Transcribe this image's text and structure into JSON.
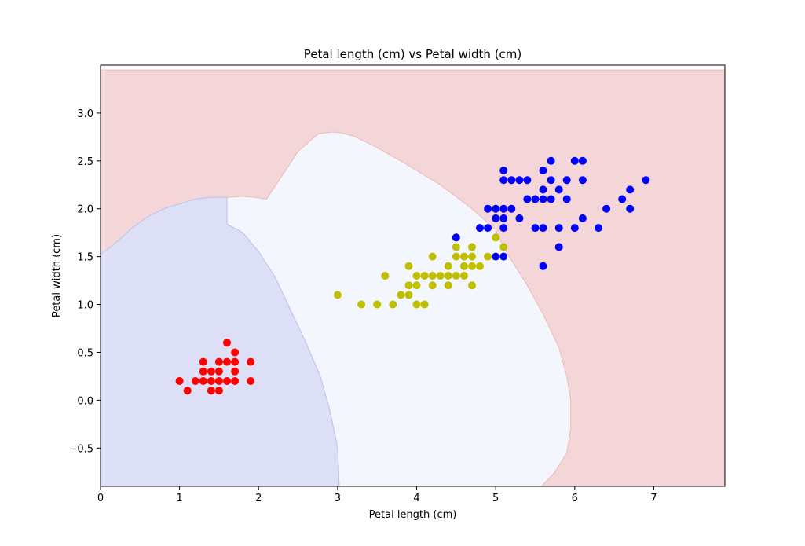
{
  "chart_data": {
    "type": "scatter",
    "title": "Petal length (cm) vs Petal width (cm)",
    "xlabel": "Petal length (cm)",
    "ylabel": "Petal width (cm)",
    "xlim": [
      0,
      7.9
    ],
    "ylim": [
      -0.9,
      3.5
    ],
    "xticks": [
      0,
      1,
      2,
      3,
      4,
      5,
      6,
      7
    ],
    "xtick_labels": [
      "0",
      "1",
      "2",
      "3",
      "4",
      "5",
      "6",
      "7"
    ],
    "yticks": [
      -0.5,
      0.0,
      0.5,
      1.0,
      1.5,
      2.0,
      2.5,
      3.0
    ],
    "ytick_labels": [
      "−0.5",
      "0.0",
      "0.5",
      "1.0",
      "1.5",
      "2.0",
      "2.5",
      "3.0"
    ],
    "grid": false,
    "decision_regions": [
      {
        "color": "#f5d6d8",
        "edge": "#f0b8b4",
        "polygon": [
          [
            0,
            -0.9
          ],
          [
            7.9,
            -0.9
          ],
          [
            7.9,
            3.45
          ],
          [
            0,
            3.45
          ]
        ]
      },
      {
        "color": "#f3f6fc",
        "edge": "#f0b8b4",
        "polygon": [
          [
            1.6,
            2.12
          ],
          [
            1.8,
            2.13
          ],
          [
            1.95,
            2.12
          ],
          [
            2.1,
            2.1
          ],
          [
            2.3,
            2.35
          ],
          [
            2.5,
            2.6
          ],
          [
            2.75,
            2.78
          ],
          [
            2.9,
            2.8
          ],
          [
            3.0,
            2.8
          ],
          [
            3.2,
            2.76
          ],
          [
            3.5,
            2.64
          ],
          [
            3.9,
            2.45
          ],
          [
            4.3,
            2.25
          ],
          [
            4.7,
            2.0
          ],
          [
            5.0,
            1.78
          ],
          [
            5.1,
            1.6
          ],
          [
            5.2,
            1.46
          ],
          [
            5.4,
            1.2
          ],
          [
            5.6,
            0.9
          ],
          [
            5.8,
            0.55
          ],
          [
            5.9,
            0.25
          ],
          [
            5.95,
            0.0
          ],
          [
            5.95,
            -0.3
          ],
          [
            5.9,
            -0.55
          ],
          [
            5.75,
            -0.75
          ],
          [
            5.58,
            -0.9
          ],
          [
            3.02,
            -0.9
          ],
          [
            3.0,
            -0.5
          ],
          [
            2.9,
            -0.1
          ],
          [
            2.78,
            0.25
          ],
          [
            2.6,
            0.6
          ],
          [
            2.4,
            0.95
          ],
          [
            2.2,
            1.3
          ],
          [
            2.0,
            1.55
          ],
          [
            1.8,
            1.75
          ],
          [
            1.6,
            1.84
          ]
        ]
      },
      {
        "color": "#dcdff5",
        "edge": "#b8c2f0",
        "polygon": [
          [
            0,
            -0.9
          ],
          [
            3.02,
            -0.9
          ],
          [
            3.0,
            -0.5
          ],
          [
            2.9,
            -0.1
          ],
          [
            2.78,
            0.25
          ],
          [
            2.6,
            0.6
          ],
          [
            2.4,
            0.95
          ],
          [
            2.2,
            1.3
          ],
          [
            2.0,
            1.55
          ],
          [
            1.8,
            1.75
          ],
          [
            1.6,
            1.84
          ],
          [
            1.6,
            2.12
          ],
          [
            1.4,
            2.12
          ],
          [
            1.2,
            2.1
          ],
          [
            1.0,
            2.05
          ],
          [
            0.8,
            2.0
          ],
          [
            0.6,
            1.92
          ],
          [
            0.4,
            1.8
          ],
          [
            0.2,
            1.65
          ],
          [
            0,
            1.52
          ]
        ]
      }
    ],
    "series": [
      {
        "color": "#ff0000",
        "points": [
          [
            1.0,
            0.2
          ],
          [
            1.1,
            0.1
          ],
          [
            1.2,
            0.2
          ],
          [
            1.3,
            0.2
          ],
          [
            1.3,
            0.3
          ],
          [
            1.3,
            0.4
          ],
          [
            1.4,
            0.1
          ],
          [
            1.4,
            0.2
          ],
          [
            1.4,
            0.3
          ],
          [
            1.5,
            0.1
          ],
          [
            1.5,
            0.2
          ],
          [
            1.5,
            0.3
          ],
          [
            1.5,
            0.4
          ],
          [
            1.6,
            0.2
          ],
          [
            1.6,
            0.4
          ],
          [
            1.6,
            0.6
          ],
          [
            1.7,
            0.2
          ],
          [
            1.7,
            0.3
          ],
          [
            1.7,
            0.4
          ],
          [
            1.7,
            0.5
          ],
          [
            1.9,
            0.2
          ],
          [
            1.9,
            0.4
          ]
        ]
      },
      {
        "color": "#bfbf00",
        "points": [
          [
            3.0,
            1.1
          ],
          [
            3.3,
            1.0
          ],
          [
            3.5,
            1.0
          ],
          [
            3.6,
            1.3
          ],
          [
            3.7,
            1.0
          ],
          [
            3.8,
            1.1
          ],
          [
            3.9,
            1.1
          ],
          [
            3.9,
            1.2
          ],
          [
            3.9,
            1.4
          ],
          [
            4.0,
            1.0
          ],
          [
            4.0,
            1.2
          ],
          [
            4.0,
            1.3
          ],
          [
            4.1,
            1.0
          ],
          [
            4.1,
            1.3
          ],
          [
            4.2,
            1.2
          ],
          [
            4.2,
            1.3
          ],
          [
            4.2,
            1.5
          ],
          [
            4.3,
            1.3
          ],
          [
            4.4,
            1.2
          ],
          [
            4.4,
            1.3
          ],
          [
            4.4,
            1.4
          ],
          [
            4.5,
            1.3
          ],
          [
            4.5,
            1.5
          ],
          [
            4.5,
            1.6
          ],
          [
            4.6,
            1.3
          ],
          [
            4.6,
            1.4
          ],
          [
            4.6,
            1.5
          ],
          [
            4.7,
            1.2
          ],
          [
            4.7,
            1.4
          ],
          [
            4.7,
            1.5
          ],
          [
            4.7,
            1.6
          ],
          [
            4.8,
            1.4
          ],
          [
            4.9,
            1.5
          ],
          [
            5.0,
            1.7
          ],
          [
            5.1,
            1.6
          ]
        ]
      },
      {
        "color": "#0000ff",
        "points": [
          [
            4.5,
            1.7
          ],
          [
            4.8,
            1.8
          ],
          [
            4.9,
            1.8
          ],
          [
            4.9,
            2.0
          ],
          [
            5.0,
            1.5
          ],
          [
            5.0,
            1.9
          ],
          [
            5.0,
            2.0
          ],
          [
            5.1,
            1.5
          ],
          [
            5.1,
            1.8
          ],
          [
            5.1,
            1.9
          ],
          [
            5.1,
            2.0
          ],
          [
            5.1,
            2.3
          ],
          [
            5.1,
            2.4
          ],
          [
            5.2,
            2.0
          ],
          [
            5.2,
            2.3
          ],
          [
            5.3,
            1.9
          ],
          [
            5.3,
            2.3
          ],
          [
            5.4,
            2.1
          ],
          [
            5.4,
            2.3
          ],
          [
            5.5,
            1.8
          ],
          [
            5.5,
            2.1
          ],
          [
            5.6,
            1.4
          ],
          [
            5.6,
            1.8
          ],
          [
            5.6,
            2.1
          ],
          [
            5.6,
            2.2
          ],
          [
            5.6,
            2.4
          ],
          [
            5.7,
            2.1
          ],
          [
            5.7,
            2.3
          ],
          [
            5.7,
            2.5
          ],
          [
            5.8,
            1.6
          ],
          [
            5.8,
            1.8
          ],
          [
            5.8,
            2.2
          ],
          [
            5.9,
            2.1
          ],
          [
            5.9,
            2.3
          ],
          [
            6.0,
            1.8
          ],
          [
            6.0,
            2.5
          ],
          [
            6.1,
            1.9
          ],
          [
            6.1,
            2.3
          ],
          [
            6.1,
            2.5
          ],
          [
            6.3,
            1.8
          ],
          [
            6.4,
            2.0
          ],
          [
            6.6,
            2.1
          ],
          [
            6.7,
            2.0
          ],
          [
            6.7,
            2.2
          ],
          [
            6.9,
            2.3
          ]
        ]
      }
    ]
  }
}
